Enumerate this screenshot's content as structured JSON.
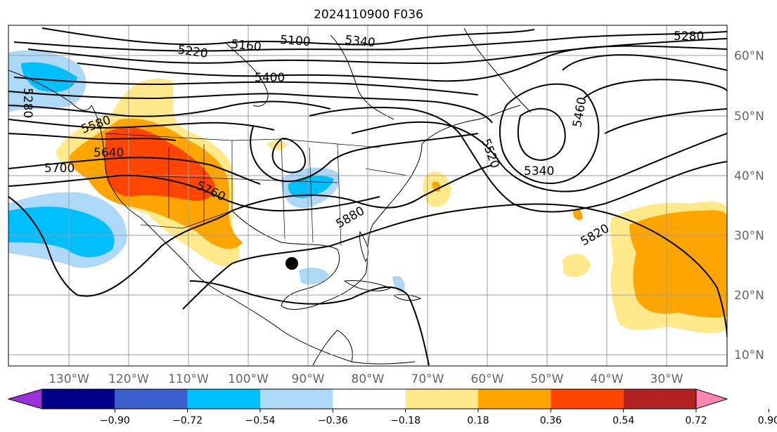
{
  "title": "2024110900 F036",
  "lon_labels": [
    "130°W",
    "120°W",
    "110°W",
    "100°W",
    "90°W",
    "80°W",
    "70°W",
    "60°W",
    "50°W",
    "40°W",
    "30°W"
  ],
  "lat_labels": [
    "60°N",
    "50°N",
    "40°N",
    "30°N",
    "20°N",
    "10°N"
  ],
  "contour_labels": [
    "5280",
    "5220",
    "5160",
    "5100",
    "5340",
    "5280",
    "5400",
    "5460",
    "5520",
    "5340",
    "5580",
    "5640",
    "5700",
    "5760",
    "5880",
    "5820"
  ],
  "colorbar": {
    "ticks": [
      "−0.90",
      "−0.72",
      "−0.54",
      "−0.36",
      "−0.18",
      "0.18",
      "0.36",
      "0.54",
      "0.72",
      "0.90"
    ],
    "colors": [
      "#9b30d9",
      "#00008b",
      "#3a5fcd",
      "#00bfff",
      "#add8f7",
      "#ffffff",
      "#ffe98a",
      "#ffa500",
      "#ff4500",
      "#b22222",
      "#ff85b0"
    ]
  },
  "colors": {
    "cyan": "#00bfff",
    "light_blue": "#add8f7",
    "yellow": "#ffe98a",
    "orange": "#ffa500",
    "red_orange": "#ff4500"
  },
  "marker": "storm-center-dot"
}
